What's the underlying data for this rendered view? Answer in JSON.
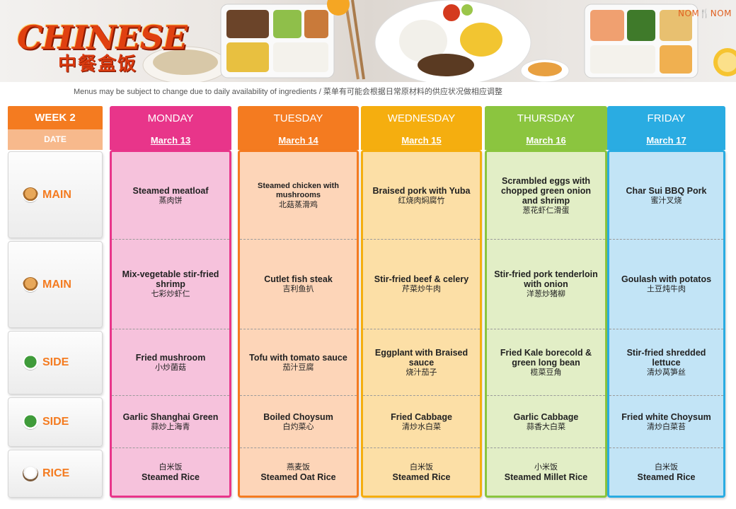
{
  "header": {
    "brand_en": "CHINESE",
    "brand_zh": "中餐盒饭",
    "logo": "NOM🍴NOM",
    "disclaimer": "Menus may be subject to change due to daily availability  of ingredients / 菜单有可能会根据日常原材料的供应状况做相应调整"
  },
  "labels": {
    "week": "WEEK 2",
    "date": "DATE"
  },
  "categories": [
    {
      "label": "MAIN",
      "icon": "main-dish-icon"
    },
    {
      "label": "MAIN",
      "icon": "main-dish-icon"
    },
    {
      "label": "SIDE",
      "icon": "side-dish-icon"
    },
    {
      "label": "SIDE",
      "icon": "side-dish-icon"
    },
    {
      "label": "RICE",
      "icon": "rice-bowl-icon"
    }
  ],
  "colors": {
    "monday": "#e8358a",
    "tuesday": "#f47b20",
    "wednesday": "#f5ae0f",
    "thursday": "#8bc53f",
    "friday": "#2aace2",
    "monday_body": "#f6c2dc",
    "tuesday_body": "#fdd5b8",
    "wednesday_body": "#fcdfa6",
    "thursday_body": "#e2eec6",
    "friday_body": "#c2e4f6"
  },
  "days": [
    {
      "name": "MONDAY",
      "date": "March 13",
      "cells": [
        {
          "en": "Steamed meatloaf",
          "zh": "蒸肉饼"
        },
        {
          "en": "Mix-vegetable stir-fried shrimp",
          "zh": "七彩炒虾仁"
        },
        {
          "en": "Fried mushroom",
          "zh": "小炒菌菇"
        },
        {
          "en": "Garlic Shanghai Green",
          "zh": "蒜炒上海青"
        },
        {
          "zh": "白米饭",
          "en": "Steamed Rice",
          "zh_first": true
        }
      ]
    },
    {
      "name": "TUESDAY",
      "date": "March 14",
      "cells": [
        {
          "en": "Steamed chicken with mushrooms",
          "zh": "北菇蒸滑鸡",
          "small": true
        },
        {
          "en": "Cutlet fish steak",
          "zh": "吉利鱼扒"
        },
        {
          "en": "Tofu with tomato sauce",
          "zh": "茄汁豆腐"
        },
        {
          "en": "Boiled Choysum",
          "zh": "白灼菜心"
        },
        {
          "zh": "燕麦饭",
          "en": "Steamed Oat Rice",
          "zh_first": true
        }
      ]
    },
    {
      "name": "WEDNESDAY",
      "date": "March 15",
      "cells": [
        {
          "en": "Braised pork with Yuba",
          "zh": "红烧肉焖腐竹"
        },
        {
          "en": "Stir-fried beef & celery",
          "zh": "芹菜炒牛肉"
        },
        {
          "en": "Eggplant with Braised sauce",
          "zh": "烧汁茄子"
        },
        {
          "en": "Fried Cabbage",
          "zh": "清炒水白菜"
        },
        {
          "zh": "白米饭",
          "en": "Steamed Rice",
          "zh_first": true
        }
      ]
    },
    {
      "name": "THURSDAY",
      "date": "March 16",
      "cells": [
        {
          "en": "Scrambled eggs with chopped green onion and shrimp",
          "zh": "葱花虾仁滑蛋"
        },
        {
          "en": "Stir-fried pork tenderloin with onion",
          "zh": "洋葱炒猪柳"
        },
        {
          "en": "Fried Kale borecold & green long bean",
          "zh": "榄菜豆角"
        },
        {
          "en": "Garlic Cabbage",
          "zh": "蒜香大白菜"
        },
        {
          "zh": "小米饭",
          "en": "Steamed Millet Rice",
          "zh_first": true
        }
      ]
    },
    {
      "name": "FRIDAY",
      "date": "March 17",
      "cells": [
        {
          "en": "Char Sui BBQ Pork",
          "zh": "蜜汁叉烧"
        },
        {
          "en": "Goulash with potatos",
          "zh": "土豆炖牛肉"
        },
        {
          "en": "Stir-fried shredded lettuce",
          "zh": "清炒莴笋丝"
        },
        {
          "en": "Fried white Choysum",
          "zh": "清炒白菜苔"
        },
        {
          "zh": "白米饭",
          "en": "Steamed Rice",
          "zh_first": true
        }
      ]
    }
  ]
}
